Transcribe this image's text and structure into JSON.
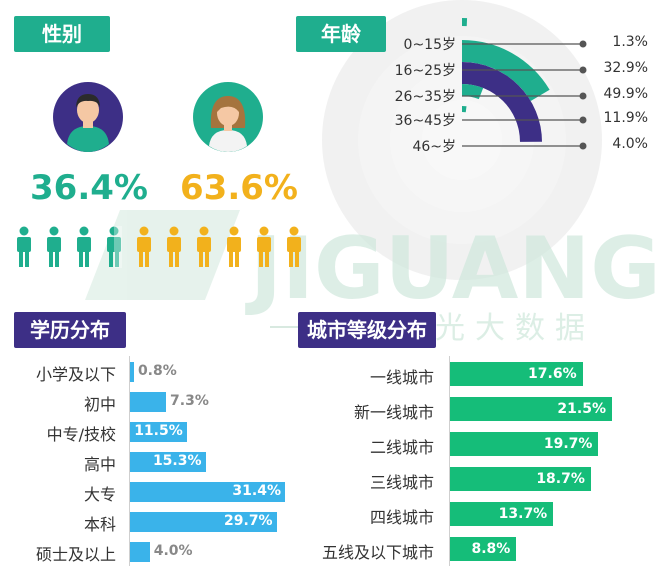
{
  "watermark": {
    "logo": "JIGUANG",
    "sub": "极光大数据"
  },
  "gender": {
    "tag": "性别",
    "male_pct": "36.4%",
    "female_pct": "63.6%",
    "male_color": "#1fae8e",
    "female_color": "#f2b11c",
    "male_icons": 4,
    "female_icons": 6
  },
  "age": {
    "tag": "年龄",
    "chart_data": {
      "type": "radial-bar",
      "categories": [
        "0~15岁",
        "16~25岁",
        "26~35岁",
        "36~45岁",
        "46~岁"
      ],
      "values": [
        1.3,
        32.9,
        49.9,
        11.9,
        4.0
      ],
      "value_labels": [
        "1.3%",
        "32.9%",
        "49.9%",
        "11.9%",
        "4.0%"
      ],
      "colors": [
        "#1fae8e",
        "#1fae8e",
        "#3d2f86",
        "#1fae8e",
        "#1fae8e"
      ]
    }
  },
  "education": {
    "tag": "学历分布",
    "chart_data": {
      "type": "bar",
      "orientation": "horizontal",
      "categories": [
        "小学及以下",
        "初中",
        "中专/技校",
        "高中",
        "大专",
        "本科",
        "硕士及以上"
      ],
      "values": [
        0.8,
        7.3,
        11.5,
        15.3,
        31.4,
        29.7,
        4.0
      ],
      "value_labels": [
        "0.8%",
        "7.3%",
        "11.5%",
        "15.3%",
        "31.4%",
        "29.7%",
        "4.0%"
      ],
      "color": "#3ab3ea"
    }
  },
  "city": {
    "tag": "城市等级分布",
    "chart_data": {
      "type": "bar",
      "orientation": "horizontal",
      "categories": [
        "一线城市",
        "新一线城市",
        "二线城市",
        "三线城市",
        "四线城市",
        "五线及以下城市"
      ],
      "values": [
        17.6,
        21.5,
        19.7,
        18.7,
        13.7,
        8.8
      ],
      "value_labels": [
        "17.6%",
        "21.5%",
        "19.7%",
        "18.7%",
        "13.7%",
        "8.8%"
      ],
      "color": "#15bd79"
    }
  }
}
